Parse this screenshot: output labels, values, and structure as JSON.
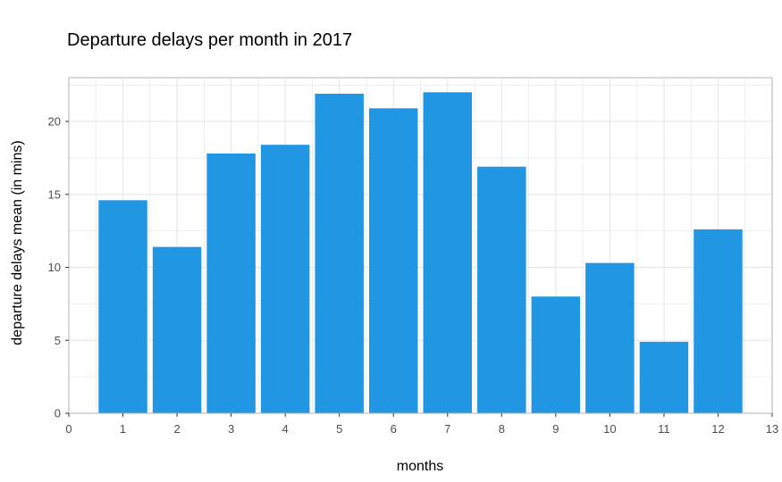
{
  "chart_data": {
    "type": "bar",
    "title": "Departure delays per month in 2017",
    "xlabel": "months",
    "ylabel": "departure delays mean (in mins)",
    "x": [
      1,
      2,
      3,
      4,
      5,
      6,
      7,
      8,
      9,
      10,
      11,
      12
    ],
    "values": [
      14.6,
      11.4,
      17.8,
      18.4,
      21.9,
      20.9,
      22.0,
      16.9,
      8.0,
      10.3,
      4.9,
      12.6
    ],
    "xlim": [
      0,
      13
    ],
    "ylim": [
      0,
      23
    ],
    "xticks": [
      0,
      1,
      2,
      3,
      4,
      5,
      6,
      7,
      8,
      9,
      10,
      11,
      12,
      13
    ],
    "yticks": [
      0,
      5,
      10,
      15,
      20
    ],
    "grid": true,
    "bar_color": "#2196e3",
    "panel_border_color": "#b3b3b3",
    "grid_color": "#e6e6e6"
  }
}
